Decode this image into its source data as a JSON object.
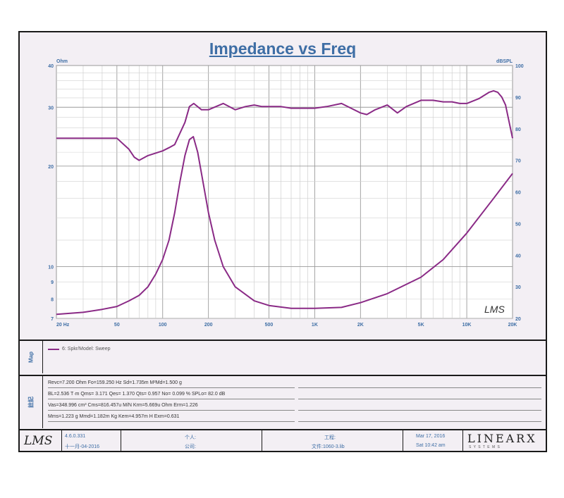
{
  "chart_data": {
    "type": "line",
    "title": "Impedance vs Freq",
    "left_axis": {
      "unit_label": "Ohm",
      "scale": "log",
      "range": [
        7,
        40
      ],
      "tick_labels": [
        "40",
        "30",
        "20",
        "10",
        "9",
        "8",
        "7"
      ],
      "tick_values": [
        40,
        30,
        20,
        10,
        9,
        8,
        7
      ]
    },
    "right_axis": {
      "unit_label": "dBSPL",
      "scale": "linear",
      "range": [
        20,
        100
      ],
      "tick_labels": [
        "100",
        "90",
        "80",
        "70",
        "60",
        "50",
        "40",
        "30",
        "20"
      ],
      "tick_values": [
        100,
        90,
        80,
        70,
        60,
        50,
        40,
        30,
        20
      ]
    },
    "x_axis": {
      "scale": "log",
      "range": [
        20,
        20000
      ],
      "tick_labels": [
        "20 Hz",
        "50",
        "100",
        "200",
        "500",
        "1K",
        "2K",
        "5K",
        "10K",
        "20K"
      ],
      "tick_values": [
        20,
        50,
        100,
        200,
        500,
        1000,
        2000,
        5000,
        10000,
        20000
      ]
    },
    "grid": true,
    "series": [
      {
        "axis": "right",
        "color": "#8a2a86",
        "x": [
          20,
          30,
          50,
          60,
          65,
          70,
          80,
          100,
          110,
          120,
          140,
          150,
          160,
          180,
          200,
          250,
          300,
          350,
          400,
          450,
          500,
          600,
          700,
          800,
          1000,
          1200,
          1500,
          2000,
          2200,
          2500,
          3000,
          3500,
          4000,
          5000,
          6000,
          7000,
          8000,
          9000,
          10000,
          12000,
          14000,
          15000,
          16000,
          17000,
          18000,
          20000
        ],
        "y": [
          77,
          77,
          77,
          73.5,
          71,
          70,
          71.5,
          73,
          74,
          75,
          82,
          87,
          88,
          86,
          86,
          88,
          86,
          87,
          87.5,
          87,
          87,
          87,
          86.5,
          86.5,
          86.5,
          87,
          88,
          85,
          84.5,
          86,
          87.5,
          85,
          87,
          89,
          89,
          88.5,
          88.5,
          88,
          88,
          89.5,
          91.5,
          92,
          91.5,
          90,
          87.5,
          77
        ]
      },
      {
        "axis": "left",
        "color": "#8a2a86",
        "x": [
          20,
          30,
          40,
          50,
          60,
          70,
          80,
          90,
          100,
          110,
          120,
          130,
          140,
          150,
          159,
          170,
          180,
          200,
          220,
          250,
          300,
          400,
          500,
          700,
          1000,
          1500,
          2000,
          3000,
          5000,
          7000,
          10000,
          15000,
          20000
        ],
        "y": [
          7.2,
          7.3,
          7.45,
          7.6,
          7.9,
          8.2,
          8.7,
          9.5,
          10.5,
          12.0,
          14.5,
          18.0,
          21.5,
          24.0,
          24.5,
          22.0,
          19.0,
          14.5,
          12.0,
          10.0,
          8.7,
          7.9,
          7.65,
          7.5,
          7.5,
          7.55,
          7.8,
          8.3,
          9.3,
          10.5,
          12.6,
          16.0,
          19.0
        ]
      }
    ],
    "annotation": "LMS"
  },
  "legend": {
    "entries": [
      {
        "label": "6: Spkr/Model: Sweep",
        "color": "#8a2a86"
      }
    ],
    "side_label": "Map"
  },
  "params": {
    "side_label": "註記",
    "lines": [
      "Revc=7.200 Ohm  Fo=159.250 Hz  Sd=1.735m M²Md=1.500 g",
      "BL=2.536 T·m  Qms= 3.171  Qes= 1.370  Qts= 0.957  No= 0.099 %  SPLo= 82.0 dB",
      "Vas=348.996 cm³ Cms=816.457u M/N  Krm=5.669u Ohm  Erm=1.226",
      "Mms=1.223 g  Mmd=1.182m Kg  Kem=4.957m H  Exm=0.631"
    ]
  },
  "footer": {
    "logo": "LMS",
    "version": "4.6.0.331",
    "date_local": "十一月-04-2016",
    "person_label": "个人:",
    "company_label": "公司:",
    "project_label": "工程:",
    "file_label": "文件:1060-3.lib",
    "date": "Mar 17, 2016",
    "time": "Sat 10:42 am",
    "brand": "LINEARX",
    "brand_sub": "S Y S T E M S"
  }
}
